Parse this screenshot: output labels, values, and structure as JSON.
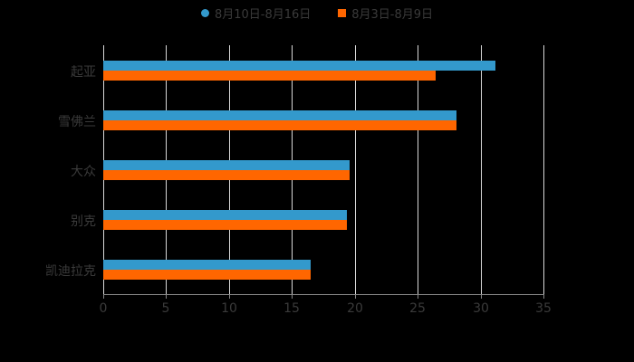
{
  "chart_data": {
    "type": "bar",
    "orientation": "horizontal",
    "title": "",
    "categories": [
      "起亚",
      "雪佛兰",
      "大众",
      "别克",
      "凯迪拉克"
    ],
    "series": [
      {
        "name": "8月10日-8月16日",
        "color": "#3399cc",
        "values": [
          31.2,
          28.1,
          19.6,
          19.4,
          16.5
        ]
      },
      {
        "name": "8月3日-8月9日",
        "color": "#ff6600",
        "values": [
          26.4,
          28.1,
          19.6,
          19.4,
          16.5
        ]
      }
    ],
    "xlabel": "",
    "ylabel": "",
    "xlim": [
      0,
      35
    ],
    "xticks": [
      "0",
      "5",
      "10",
      "15",
      "20",
      "25",
      "30",
      "35"
    ],
    "grid": true,
    "legend_position": "top"
  },
  "legend": [
    {
      "label": "8月10日-8月16日",
      "color": "#3399cc",
      "shape": "circle"
    },
    {
      "label": "8月3日-8月9日",
      "color": "#ff6600",
      "shape": "square"
    }
  ]
}
